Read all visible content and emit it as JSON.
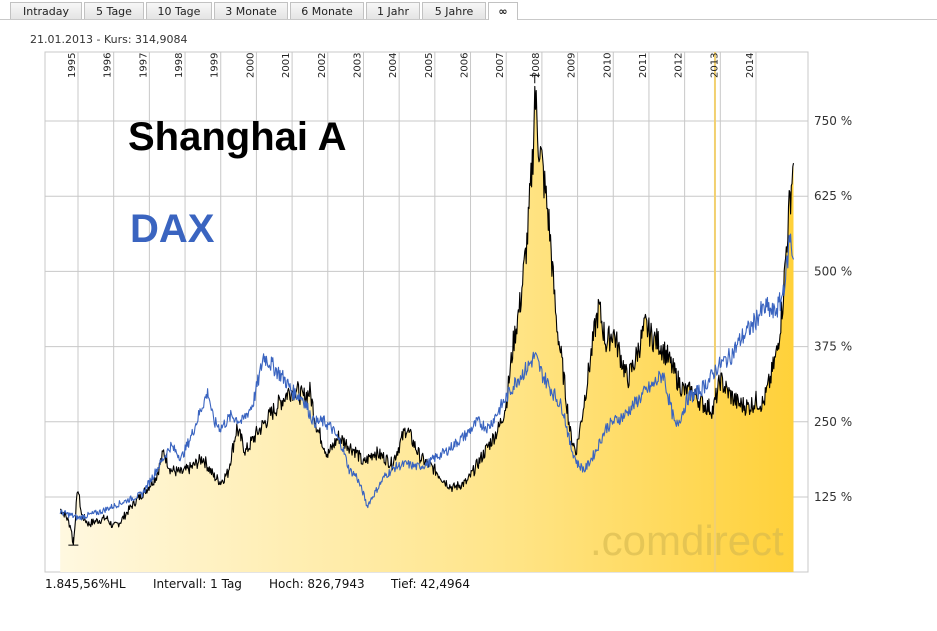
{
  "tabs": [
    "Intraday",
    "5 Tage",
    "10 Tage",
    "3 Monate",
    "6 Monate",
    "1 Jahr",
    "5 Jahre",
    "∞"
  ],
  "active_tab": 7,
  "header": {
    "kurs_line": "21.01.2013  -  Kurs: 314,9084"
  },
  "annotations": {
    "title1": "Shanghai A",
    "title2": "DAX",
    "watermark": ".comdirect"
  },
  "footer": {
    "hl": "1.845,56%HL",
    "interval": "Intervall: 1 Tag",
    "high": "Hoch: 826,7943",
    "low": "Tief: 42,4964"
  },
  "colors": {
    "shanghai": "#000000",
    "dax": "#3a64c0",
    "area_light": "#fff6d8",
    "area_dark": "#ffd23e",
    "grid": "#c8c8c8",
    "title_dax": "#3a64c0"
  },
  "chart_data": {
    "type": "line",
    "x_tick_labels": [
      "1995",
      "1996",
      "1997",
      "1998",
      "1999",
      "2000",
      "2001",
      "2002",
      "2003",
      "2004",
      "2005",
      "2006",
      "2007",
      "2008",
      "2009",
      "2010",
      "2011",
      "2012",
      "2013",
      "2014"
    ],
    "y_tick_labels": [
      "125 %",
      "250 %",
      "375 %",
      "500 %",
      "625 %",
      "750 %"
    ],
    "ylim": [
      0,
      870
    ],
    "xlim": [
      1994.5,
      2015.1
    ],
    "series": [
      {
        "name": "Shanghai A",
        "style": "line-with-area",
        "points": [
          [
            1994.5,
            105
          ],
          [
            1994.65,
            95
          ],
          [
            1994.8,
            75
          ],
          [
            1994.87,
            45
          ],
          [
            1994.95,
            110
          ],
          [
            1995.0,
            140
          ],
          [
            1995.1,
            95
          ],
          [
            1995.3,
            80
          ],
          [
            1995.5,
            85
          ],
          [
            1995.8,
            90
          ],
          [
            1996.0,
            75
          ],
          [
            1996.2,
            85
          ],
          [
            1996.5,
            110
          ],
          [
            1996.8,
            130
          ],
          [
            1996.95,
            140
          ],
          [
            1997.2,
            160
          ],
          [
            1997.4,
            200
          ],
          [
            1997.6,
            170
          ],
          [
            1997.9,
            165
          ],
          [
            1998.2,
            175
          ],
          [
            1998.5,
            190
          ],
          [
            1998.8,
            160
          ],
          [
            1999.0,
            150
          ],
          [
            1999.2,
            165
          ],
          [
            1999.45,
            240
          ],
          [
            1999.7,
            200
          ],
          [
            2000.0,
            230
          ],
          [
            2000.5,
            270
          ],
          [
            2000.9,
            300
          ],
          [
            2001.1,
            305
          ],
          [
            2001.3,
            290
          ],
          [
            2001.5,
            300
          ],
          [
            2001.7,
            240
          ],
          [
            2001.9,
            210
          ],
          [
            2002.0,
            195
          ],
          [
            2002.3,
            225
          ],
          [
            2002.5,
            215
          ],
          [
            2002.8,
            200
          ],
          [
            2003.0,
            180
          ],
          [
            2003.3,
            200
          ],
          [
            2003.6,
            190
          ],
          [
            2003.8,
            180
          ],
          [
            2004.0,
            210
          ],
          [
            2004.2,
            240
          ],
          [
            2004.4,
            215
          ],
          [
            2004.6,
            190
          ],
          [
            2004.8,
            180
          ],
          [
            2005.0,
            170
          ],
          [
            2005.3,
            150
          ],
          [
            2005.5,
            140
          ],
          [
            2005.9,
            150
          ],
          [
            2006.2,
            180
          ],
          [
            2006.5,
            210
          ],
          [
            2006.8,
            240
          ],
          [
            2007.0,
            280
          ],
          [
            2007.2,
            380
          ],
          [
            2007.4,
            450
          ],
          [
            2007.6,
            560
          ],
          [
            2007.75,
            700
          ],
          [
            2007.8,
            800
          ],
          [
            2007.9,
            720
          ],
          [
            2008.0,
            680
          ],
          [
            2008.2,
            580
          ],
          [
            2008.4,
            420
          ],
          [
            2008.6,
            330
          ],
          [
            2008.8,
            230
          ],
          [
            2008.95,
            200
          ],
          [
            2009.1,
            250
          ],
          [
            2009.3,
            330
          ],
          [
            2009.5,
            410
          ],
          [
            2009.6,
            440
          ],
          [
            2009.8,
            380
          ],
          [
            2010.0,
            400
          ],
          [
            2010.2,
            360
          ],
          [
            2010.4,
            320
          ],
          [
            2010.6,
            350
          ],
          [
            2010.9,
            410
          ],
          [
            2011.1,
            390
          ],
          [
            2011.3,
            380
          ],
          [
            2011.5,
            360
          ],
          [
            2011.8,
            320
          ],
          [
            2012.0,
            300
          ],
          [
            2012.2,
            300
          ],
          [
            2012.5,
            280
          ],
          [
            2012.8,
            270
          ],
          [
            2013.0,
            320
          ],
          [
            2013.2,
            300
          ],
          [
            2013.5,
            280
          ],
          [
            2013.8,
            275
          ],
          [
            2014.0,
            285
          ],
          [
            2014.2,
            280
          ],
          [
            2014.4,
            320
          ],
          [
            2014.6,
            370
          ],
          [
            2014.75,
            450
          ],
          [
            2014.85,
            540
          ],
          [
            2014.95,
            620
          ],
          [
            2015.05,
            680
          ]
        ]
      },
      {
        "name": "DAX",
        "style": "line",
        "points": [
          [
            1994.5,
            100
          ],
          [
            1994.8,
            95
          ],
          [
            1995.0,
            90
          ],
          [
            1995.3,
            95
          ],
          [
            1995.6,
            100
          ],
          [
            1996.0,
            110
          ],
          [
            1996.4,
            120
          ],
          [
            1996.8,
            130
          ],
          [
            1997.0,
            150
          ],
          [
            1997.3,
            180
          ],
          [
            1997.6,
            210
          ],
          [
            1997.9,
            190
          ],
          [
            1998.2,
            230
          ],
          [
            1998.5,
            280
          ],
          [
            1998.65,
            300
          ],
          [
            1998.8,
            250
          ],
          [
            1999.0,
            240
          ],
          [
            1999.3,
            260
          ],
          [
            1999.6,
            250
          ],
          [
            1999.9,
            280
          ],
          [
            2000.1,
            330
          ],
          [
            2000.2,
            360
          ],
          [
            2000.5,
            340
          ],
          [
            2000.8,
            320
          ],
          [
            2001.0,
            300
          ],
          [
            2001.3,
            290
          ],
          [
            2001.6,
            250
          ],
          [
            2001.9,
            250
          ],
          [
            2002.1,
            240
          ],
          [
            2002.4,
            210
          ],
          [
            2002.6,
            170
          ],
          [
            2002.8,
            160
          ],
          [
            2003.0,
            130
          ],
          [
            2003.1,
            110
          ],
          [
            2003.3,
            130
          ],
          [
            2003.6,
            160
          ],
          [
            2003.9,
            175
          ],
          [
            2004.2,
            180
          ],
          [
            2004.5,
            175
          ],
          [
            2004.8,
            180
          ],
          [
            2005.0,
            190
          ],
          [
            2005.3,
            200
          ],
          [
            2005.6,
            215
          ],
          [
            2005.9,
            230
          ],
          [
            2006.2,
            250
          ],
          [
            2006.5,
            240
          ],
          [
            2006.8,
            270
          ],
          [
            2007.0,
            290
          ],
          [
            2007.3,
            320
          ],
          [
            2007.6,
            340
          ],
          [
            2007.8,
            360
          ],
          [
            2008.0,
            330
          ],
          [
            2008.3,
            300
          ],
          [
            2008.6,
            270
          ],
          [
            2008.8,
            210
          ],
          [
            2009.0,
            180
          ],
          [
            2009.2,
            170
          ],
          [
            2009.5,
            200
          ],
          [
            2009.8,
            240
          ],
          [
            2010.0,
            250
          ],
          [
            2010.3,
            260
          ],
          [
            2010.6,
            280
          ],
          [
            2010.9,
            300
          ],
          [
            2011.1,
            310
          ],
          [
            2011.4,
            330
          ],
          [
            2011.55,
            290
          ],
          [
            2011.75,
            240
          ],
          [
            2011.9,
            260
          ],
          [
            2012.1,
            290
          ],
          [
            2012.4,
            300
          ],
          [
            2012.7,
            320
          ],
          [
            2012.9,
            340
          ],
          [
            2013.1,
            350
          ],
          [
            2013.3,
            360
          ],
          [
            2013.6,
            390
          ],
          [
            2013.9,
            410
          ],
          [
            2014.1,
            430
          ],
          [
            2014.3,
            440
          ],
          [
            2014.5,
            430
          ],
          [
            2014.7,
            450
          ],
          [
            2014.85,
            500
          ],
          [
            2014.95,
            560
          ],
          [
            2015.05,
            520
          ]
        ]
      }
    ],
    "markers": [
      {
        "type": "vertical-highlight",
        "x": 2012.85,
        "color": "#f2d070"
      },
      {
        "type": "low-marker",
        "x": 1994.87,
        "y": 45
      },
      {
        "type": "high-marker",
        "x": 2007.8,
        "y": 826
      }
    ]
  }
}
